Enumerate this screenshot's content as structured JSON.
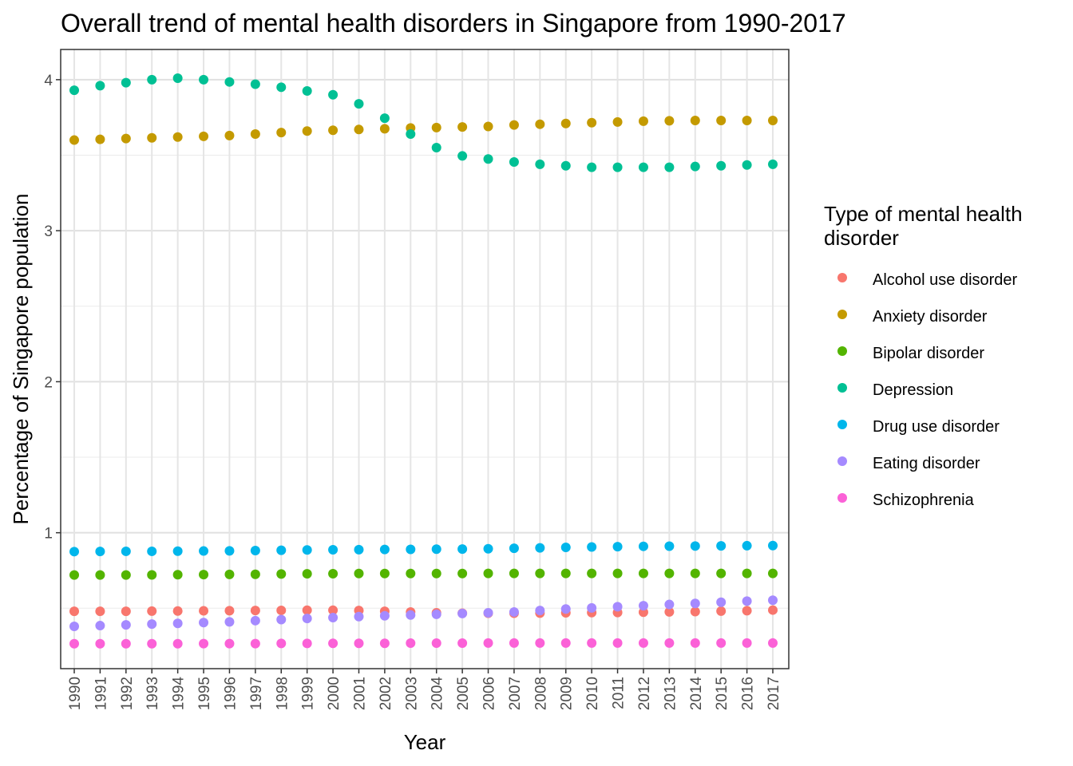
{
  "chart_data": {
    "type": "scatter",
    "title": "Overall trend of mental health disorders in Singapore from 1990-2017",
    "xlabel": "Year",
    "ylabel": "Percentage of Singapore population",
    "ylim": [
      0.1,
      4.2
    ],
    "yticks": [
      1,
      2,
      3,
      4
    ],
    "grid": true,
    "legend_position": "right",
    "legend_title": [
      "Type of mental health",
      "disorder"
    ],
    "x": [
      1990,
      1991,
      1992,
      1993,
      1994,
      1995,
      1996,
      1997,
      1998,
      1999,
      2000,
      2001,
      2002,
      2003,
      2004,
      2005,
      2006,
      2007,
      2008,
      2009,
      2010,
      2011,
      2012,
      2013,
      2014,
      2015,
      2016,
      2017
    ],
    "series": [
      {
        "name": "Alcohol use disorder",
        "color": "#F8766D",
        "values": [
          0.48,
          0.48,
          0.48,
          0.481,
          0.482,
          0.483,
          0.484,
          0.485,
          0.486,
          0.487,
          0.487,
          0.485,
          0.48,
          0.475,
          0.47,
          0.467,
          0.467,
          0.467,
          0.468,
          0.47,
          0.471,
          0.472,
          0.474,
          0.476,
          0.478,
          0.481,
          0.484,
          0.488
        ]
      },
      {
        "name": "Anxiety disorder",
        "color": "#C49A00",
        "values": [
          3.6,
          3.605,
          3.61,
          3.615,
          3.62,
          3.625,
          3.63,
          3.64,
          3.65,
          3.66,
          3.665,
          3.67,
          3.675,
          3.68,
          3.683,
          3.687,
          3.69,
          3.7,
          3.705,
          3.71,
          3.715,
          3.72,
          3.725,
          3.728,
          3.73,
          3.73,
          3.73,
          3.73
        ]
      },
      {
        "name": "Bipolar disorder",
        "color": "#53B400",
        "values": [
          0.72,
          0.72,
          0.72,
          0.721,
          0.722,
          0.723,
          0.724,
          0.725,
          0.727,
          0.728,
          0.729,
          0.73,
          0.73,
          0.73,
          0.73,
          0.73,
          0.731,
          0.731,
          0.731,
          0.731,
          0.731,
          0.731,
          0.731,
          0.731,
          0.731,
          0.731,
          0.731,
          0.731
        ]
      },
      {
        "name": "Depression",
        "color": "#00C094",
        "values": [
          3.93,
          3.96,
          3.98,
          4.0,
          4.01,
          4.0,
          3.985,
          3.97,
          3.95,
          3.925,
          3.9,
          3.84,
          3.745,
          3.64,
          3.55,
          3.495,
          3.475,
          3.455,
          3.44,
          3.43,
          3.42,
          3.42,
          3.42,
          3.42,
          3.425,
          3.43,
          3.435,
          3.44
        ]
      },
      {
        "name": "Drug use disorder",
        "color": "#00B6EB",
        "values": [
          0.875,
          0.876,
          0.877,
          0.877,
          0.878,
          0.879,
          0.88,
          0.882,
          0.884,
          0.886,
          0.887,
          0.888,
          0.889,
          0.89,
          0.891,
          0.892,
          0.894,
          0.897,
          0.9,
          0.903,
          0.906,
          0.908,
          0.91,
          0.911,
          0.912,
          0.913,
          0.914,
          0.915
        ]
      },
      {
        "name": "Eating disorder",
        "color": "#A58AFF",
        "values": [
          0.38,
          0.385,
          0.39,
          0.395,
          0.4,
          0.405,
          0.41,
          0.418,
          0.425,
          0.432,
          0.438,
          0.445,
          0.45,
          0.455,
          0.46,
          0.465,
          0.47,
          0.475,
          0.485,
          0.495,
          0.502,
          0.51,
          0.517,
          0.525,
          0.532,
          0.54,
          0.547,
          0.553
        ]
      },
      {
        "name": "Schizophrenia",
        "color": "#FB61D7",
        "values": [
          0.265,
          0.265,
          0.265,
          0.265,
          0.265,
          0.266,
          0.266,
          0.266,
          0.267,
          0.267,
          0.268,
          0.268,
          0.268,
          0.269,
          0.269,
          0.269,
          0.27,
          0.27,
          0.27,
          0.27,
          0.27,
          0.27,
          0.27,
          0.27,
          0.27,
          0.27,
          0.27,
          0.27
        ]
      }
    ]
  }
}
